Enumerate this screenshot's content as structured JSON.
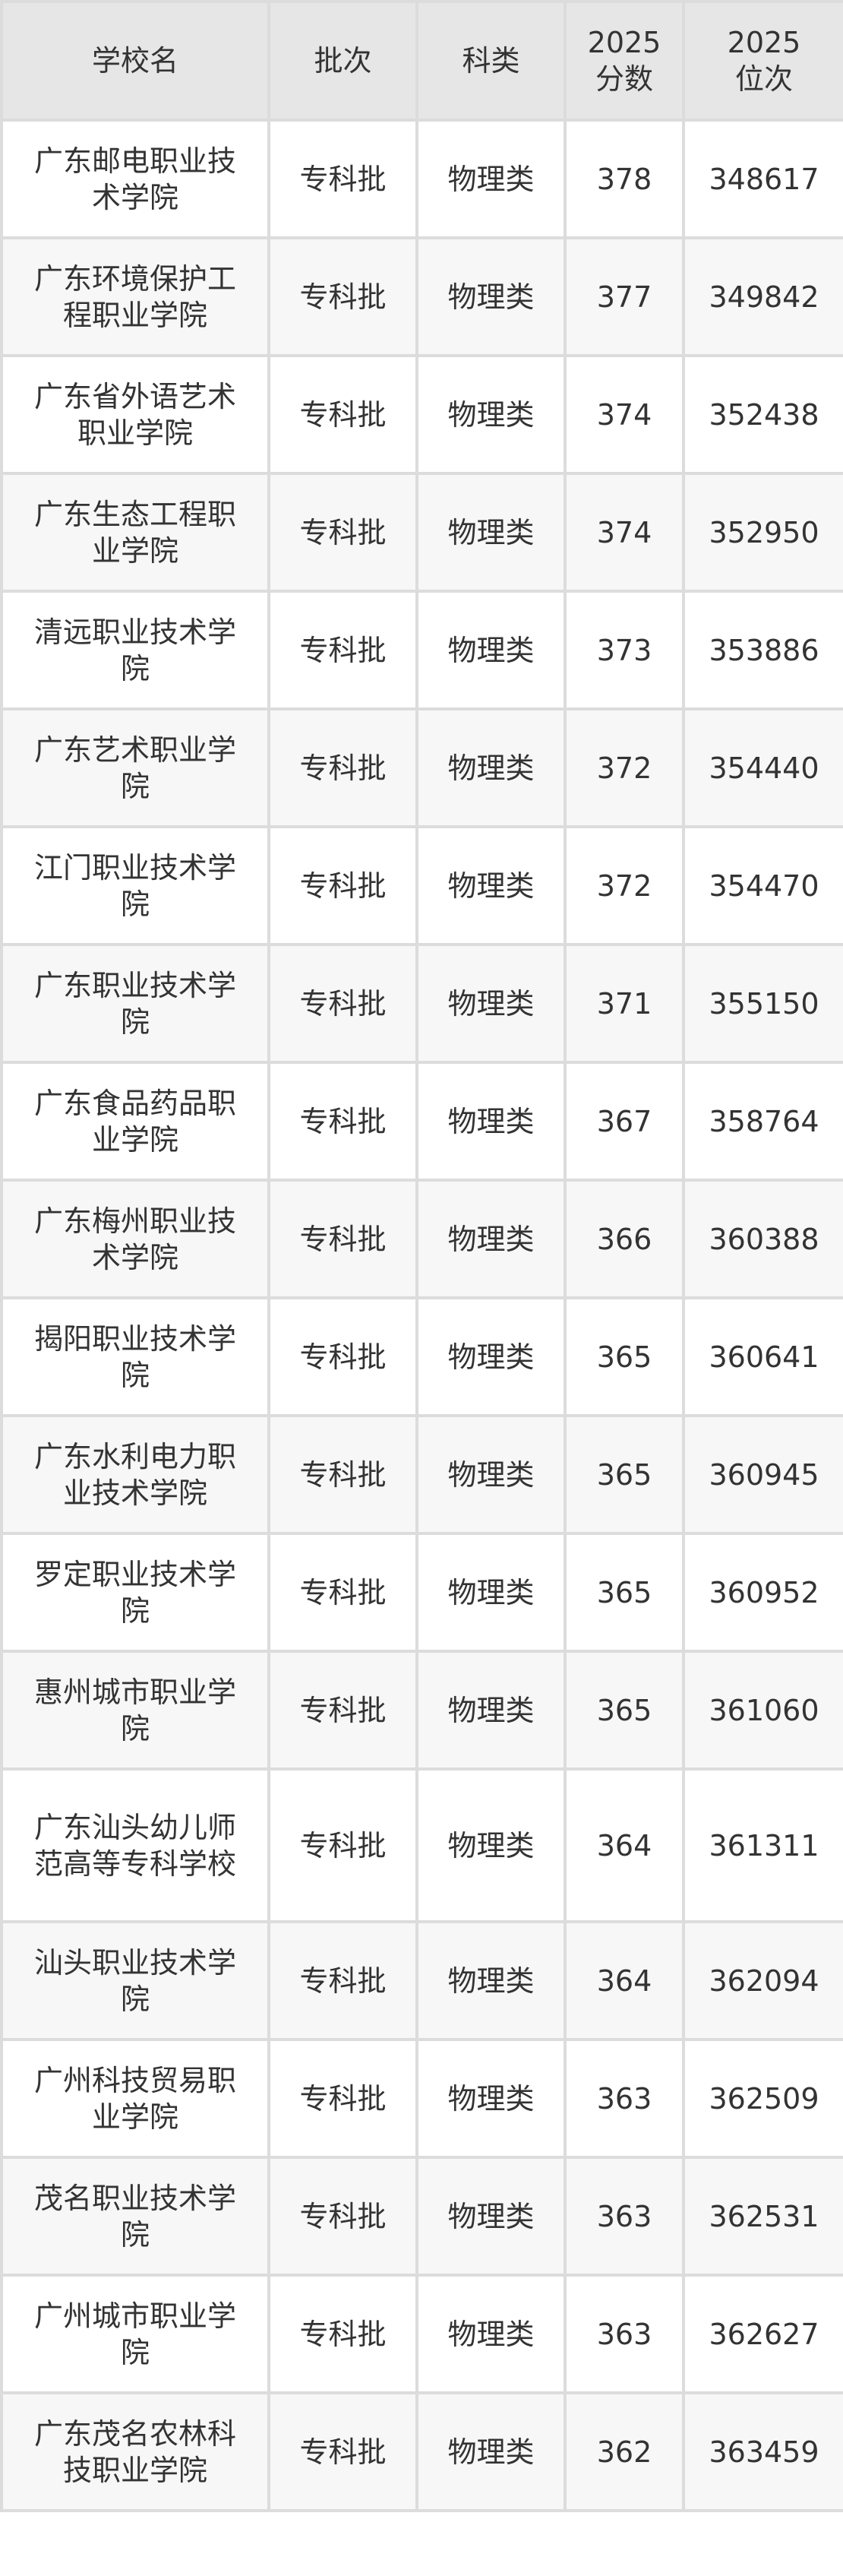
{
  "headers": [
    "学校名",
    "批次",
    "科类",
    "2025\n分数",
    "2025\n位次"
  ],
  "header_parts": {
    "score_year": "2025",
    "score_label": "分数",
    "rank_year": "2025",
    "rank_label": "位次"
  },
  "rows": [
    {
      "name": "广东邮电职业技术学院",
      "batch": "专科批",
      "category": "物理类",
      "score": "378",
      "rank": "348617"
    },
    {
      "name": "广东环境保护工程职业学院",
      "batch": "专科批",
      "category": "物理类",
      "score": "377",
      "rank": "349842"
    },
    {
      "name": "广东省外语艺术职业学院",
      "batch": "专科批",
      "category": "物理类",
      "score": "374",
      "rank": "352438"
    },
    {
      "name": "广东生态工程职业学院",
      "batch": "专科批",
      "category": "物理类",
      "score": "374",
      "rank": "352950"
    },
    {
      "name": "清远职业技术学院",
      "batch": "专科批",
      "category": "物理类",
      "score": "373",
      "rank": "353886"
    },
    {
      "name": "广东艺术职业学院",
      "batch": "专科批",
      "category": "物理类",
      "score": "372",
      "rank": "354440"
    },
    {
      "name": "江门职业技术学院",
      "batch": "专科批",
      "category": "物理类",
      "score": "372",
      "rank": "354470"
    },
    {
      "name": "广东职业技术学院",
      "batch": "专科批",
      "category": "物理类",
      "score": "371",
      "rank": "355150"
    },
    {
      "name": "广东食品药品职业学院",
      "batch": "专科批",
      "category": "物理类",
      "score": "367",
      "rank": "358764"
    },
    {
      "name": "广东梅州职业技术学院",
      "batch": "专科批",
      "category": "物理类",
      "score": "366",
      "rank": "360388"
    },
    {
      "name": "揭阳职业技术学院",
      "batch": "专科批",
      "category": "物理类",
      "score": "365",
      "rank": "360641"
    },
    {
      "name": "广东水利电力职业技术学院",
      "batch": "专科批",
      "category": "物理类",
      "score": "365",
      "rank": "360945"
    },
    {
      "name": "罗定职业技术学院",
      "batch": "专科批",
      "category": "物理类",
      "score": "365",
      "rank": "360952"
    },
    {
      "name": "惠州城市职业学院",
      "batch": "专科批",
      "category": "物理类",
      "score": "365",
      "rank": "361060"
    },
    {
      "name": "广东汕头幼儿师范高等专科学校",
      "batch": "专科批",
      "category": "物理类",
      "score": "364",
      "rank": "361311"
    },
    {
      "name": "汕头职业技术学院",
      "batch": "专科批",
      "category": "物理类",
      "score": "364",
      "rank": "362094"
    },
    {
      "name": "广州科技贸易职业学院",
      "batch": "专科批",
      "category": "物理类",
      "score": "363",
      "rank": "362509"
    },
    {
      "name": "茂名职业技术学院",
      "batch": "专科批",
      "category": "物理类",
      "score": "363",
      "rank": "362531"
    },
    {
      "name": "广州城市职业学院",
      "batch": "专科批",
      "category": "物理类",
      "score": "363",
      "rank": "362627"
    },
    {
      "name": "广东茂名农林科技职业学院",
      "batch": "专科批",
      "category": "物理类",
      "score": "362",
      "rank": "363459"
    }
  ],
  "colors": {
    "header_bg": "#e6e6e6",
    "stripe_bg": "#f7f7f7",
    "border": "#dcdcdc",
    "text": "#333333"
  }
}
